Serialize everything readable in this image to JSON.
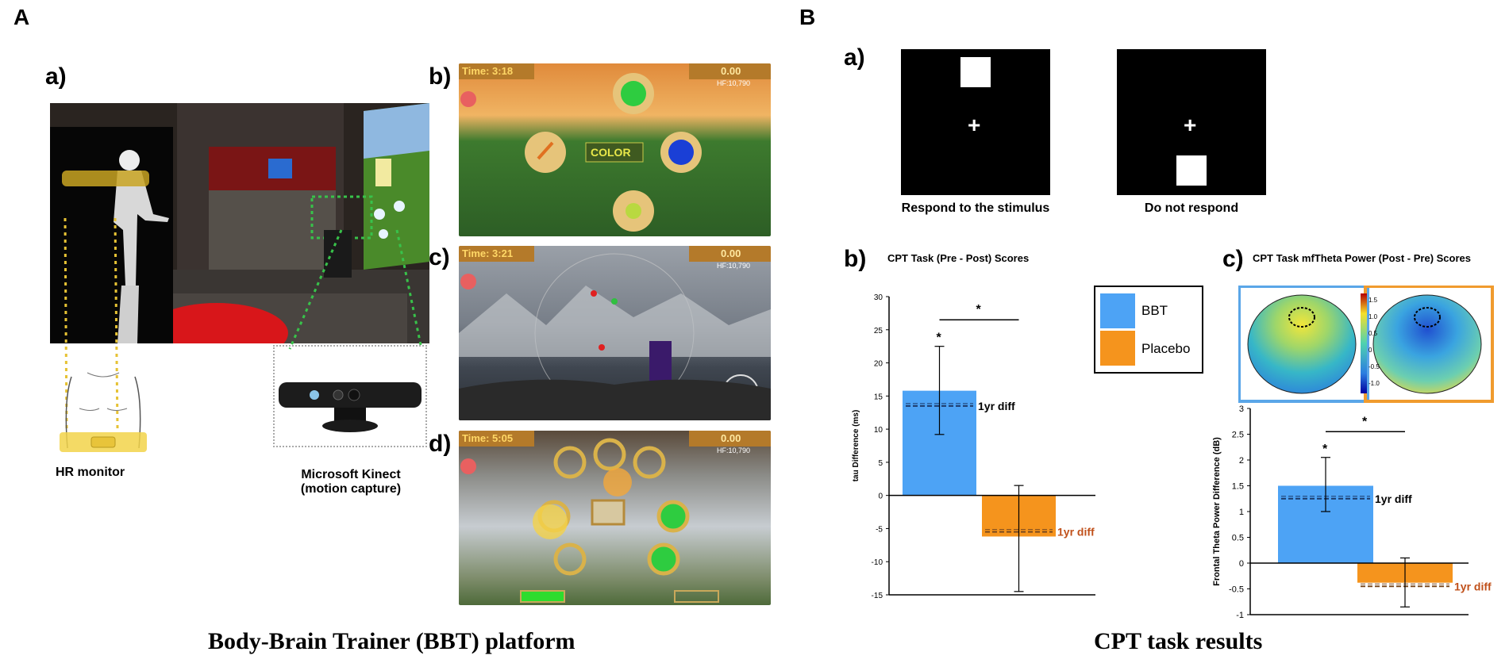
{
  "panelA": {
    "letter": "A",
    "sub_a": "a)",
    "sub_b": "b)",
    "sub_c": "c)",
    "sub_d": "d)",
    "hr_label": "HR monitor",
    "kinect_label_1": "Microsoft Kinect",
    "kinect_label_2": "(motion capture)",
    "caption": "Body-Brain Trainer (BBT) platform",
    "games": {
      "b": {
        "time": "Time: 3:18",
        "score": "0.00",
        "hf": "HF:10,790",
        "center": "COLOR"
      },
      "c": {
        "time": "Time: 3:21",
        "score": "0.00",
        "hf": "HF:10,790"
      },
      "d": {
        "time": "Time: 5:05",
        "score": "0.00",
        "hf": "HF:10,790"
      }
    }
  },
  "panelB": {
    "letter": "B",
    "sub_a": "a)",
    "sub_b": "b)",
    "sub_c": "c)",
    "stim_respond": "Respond to the stimulus",
    "stim_norespond": "Do not respond",
    "caption": "CPT task results",
    "legend": [
      {
        "name": "BBT",
        "color": "#4da3f5"
      },
      {
        "name": "Placebo",
        "color": "#f5941d"
      }
    ],
    "colorbar_ticks": [
      "1.5",
      "1.0",
      "0.5",
      "0",
      "-0.5",
      "-1.0"
    ]
  },
  "chart_data": [
    {
      "type": "bar",
      "title": "CPT Task (Pre - Post) Scores",
      "ylabel": "tau Difference (ms)",
      "categories": [
        "BBT",
        "Placebo"
      ],
      "values": [
        15.8,
        -6.2
      ],
      "error_high": [
        22.5,
        1.5
      ],
      "error_low": [
        9.2,
        -14.5
      ],
      "ref_lines": [
        13.5,
        -5.5
      ],
      "ref_label": "1yr diff",
      "ylim": [
        -15,
        30
      ],
      "yticks": [
        30,
        25,
        20,
        15,
        10,
        5,
        0,
        -5,
        -10,
        -15
      ],
      "yticklabels": [
        "30",
        "25",
        "20",
        "15",
        "10",
        "5",
        "0",
        "-5",
        "-10",
        "-15"
      ],
      "significance": "*",
      "colors": [
        "#4da3f5",
        "#f5941d"
      ]
    },
    {
      "type": "bar",
      "title": "CPT Task mfTheta Power (Post - Pre) Scores",
      "ylabel": "Frontal Theta Power Difference (dB)",
      "categories": [
        "BBT",
        "Placebo"
      ],
      "values": [
        1.5,
        -0.38
      ],
      "error_high": [
        2.05,
        0.1
      ],
      "error_low": [
        1.0,
        -0.85
      ],
      "ref_lines": [
        1.25,
        -0.45
      ],
      "ref_label": "1yr diff",
      "ylim": [
        -1,
        3
      ],
      "yticks": [
        3,
        2.5,
        2,
        1.5,
        1,
        0.5,
        0,
        -0.5,
        -1
      ],
      "yticklabels": [
        "3",
        "2.5",
        "2",
        "1.5",
        "1",
        "0.5",
        "0",
        "-0.5",
        "-1"
      ],
      "significance": "*",
      "colors": [
        "#4da3f5",
        "#f5941d"
      ]
    }
  ]
}
